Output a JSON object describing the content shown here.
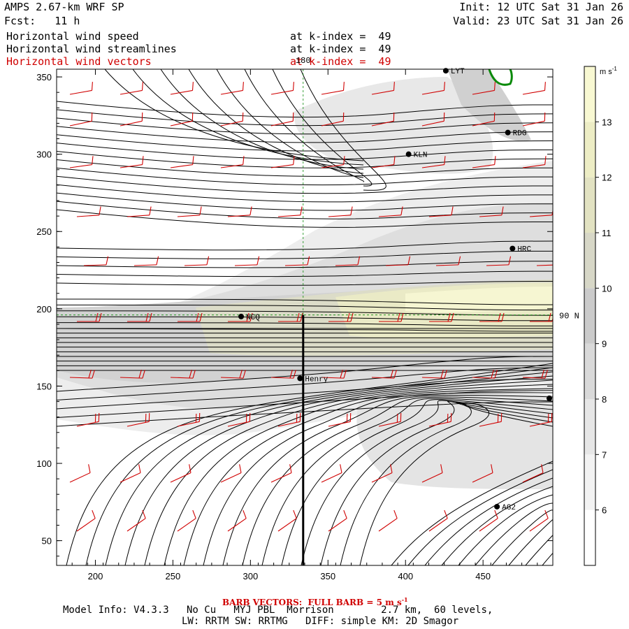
{
  "header": {
    "model": "AMPS 2.67-km WRF SP",
    "fcst": "Fcst:   11 h",
    "init": "Init: 12 UTC Sat 31 Jan 26",
    "valid": "Valid: 23 UTC Sat 31 Jan 26",
    "fields": [
      {
        "label": "Horizontal wind speed",
        "level": "at k-index =  49",
        "color": "#000000"
      },
      {
        "label": "Horizontal wind streamlines",
        "level": "at k-index =  49",
        "color": "#000000"
      },
      {
        "label": "Horizontal wind vectors",
        "level": "at k-index =  49",
        "color": "#d00000"
      }
    ]
  },
  "footer": {
    "barb_note_prefix": "BARB VECTORS:  FULL BARB = 5 m s",
    "barb_note_exp": "-1",
    "model_info_1": "Model Info: V4.3.3   No Cu   MYJ PBL  Morrison        2.7 km,  60 levels,",
    "model_info_2": "LW: RRTM SW: RRTMG   DIFF: simple KM: 2D Smagor"
  },
  "colorbar": {
    "unit": "m s",
    "unit_exp": "-1",
    "levels": [
      6,
      7,
      8,
      9,
      10,
      11,
      12,
      13
    ],
    "colors": [
      "#ffffff",
      "#f2f2f2",
      "#e6e6e6",
      "#d9d9d9",
      "#cbcbcb",
      "#d7d7c7",
      "#e2e2c2",
      "#ededc5",
      "#f8f8d2"
    ]
  },
  "stations": [
    {
      "id": "LYT",
      "x": 426,
      "y": 354
    },
    {
      "id": "RDG",
      "x": 466,
      "y": 314
    },
    {
      "id": "KLN",
      "x": 402,
      "y": 300
    },
    {
      "id": "HRC",
      "x": 469,
      "y": 239
    },
    {
      "id": "NCQ",
      "x": 294,
      "y": 195
    },
    {
      "id": "Henry",
      "x": 332,
      "y": 155
    },
    {
      "id": "AG2",
      "x": 459,
      "y": 72
    }
  ],
  "chart_data": {
    "type": "map-field",
    "title": "Horizontal wind speed, streamlines and vectors at k-index 49",
    "xlim": [
      175,
      495
    ],
    "ylim": [
      34,
      355
    ],
    "xticks": [
      200,
      250,
      300,
      350,
      400,
      450
    ],
    "yticks": [
      50,
      100,
      150,
      200,
      250,
      300,
      350
    ],
    "lat_label": "90 N",
    "lat_line_y": 196,
    "lon_label": "180",
    "lon_line_x": 334,
    "cross_section": {
      "x": 334,
      "y_from": 34,
      "y_to": 196
    }
  }
}
